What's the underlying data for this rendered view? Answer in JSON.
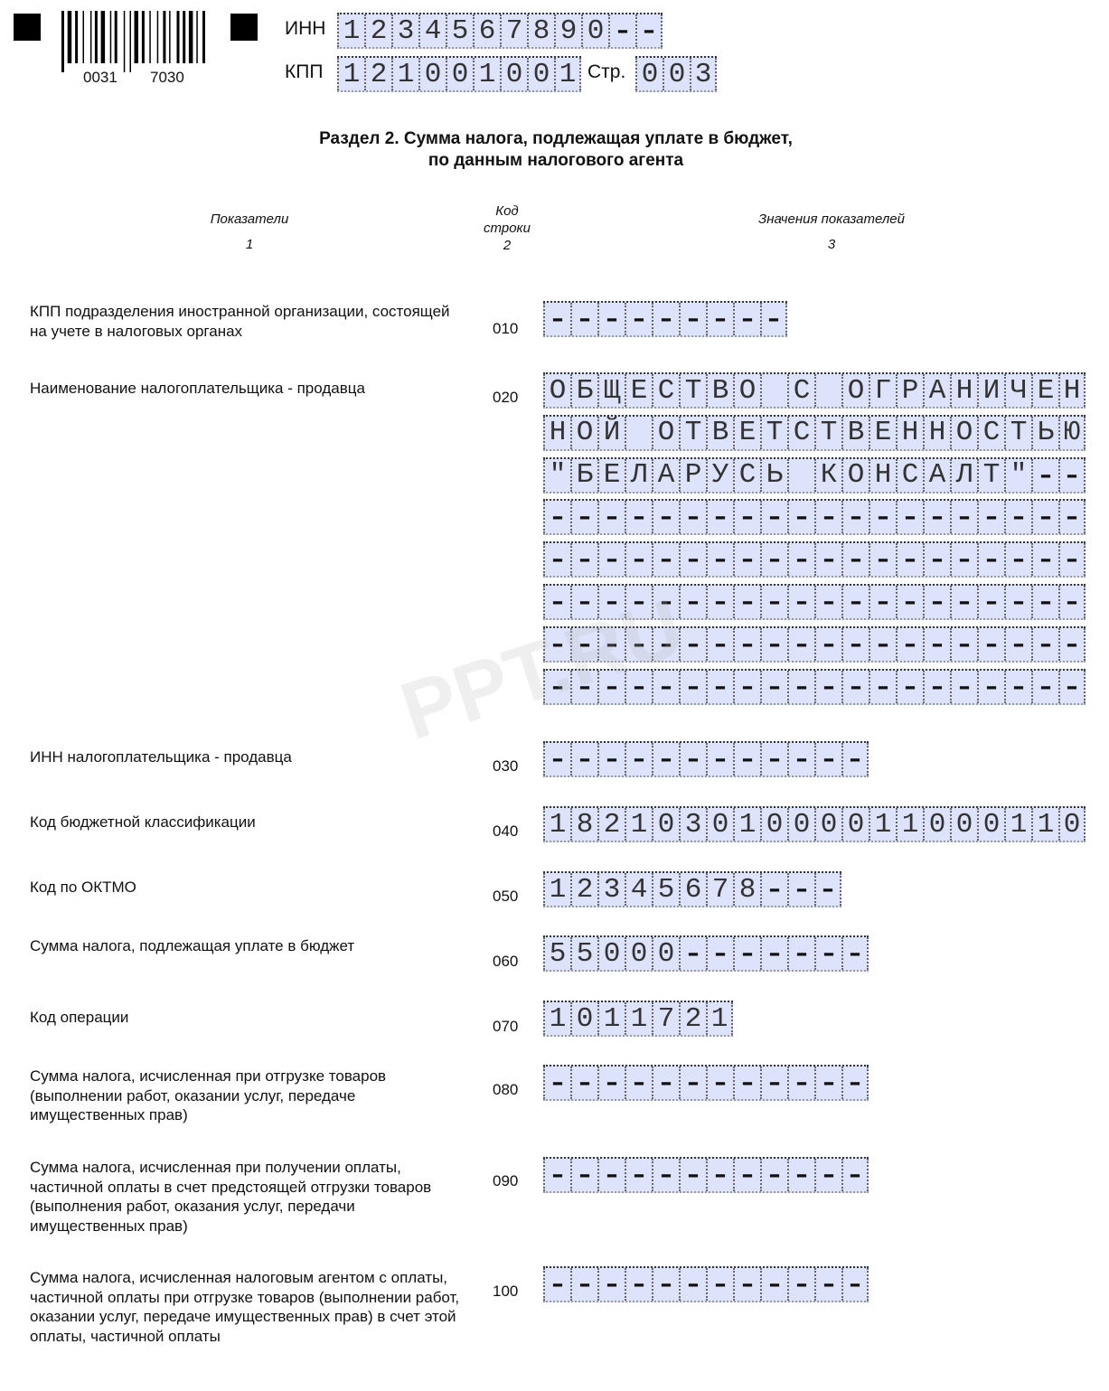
{
  "header": {
    "barcode_number_left": "0031",
    "barcode_number_right": "7030",
    "inn_label": "ИНН",
    "inn_value": "1234567890--",
    "kpp_label": "КПП",
    "kpp_value": "121001001",
    "page_label": "Стр.",
    "page_value": "003"
  },
  "title_line1": "Раздел 2. Сумма налога, подлежащая уплате в бюджет,",
  "title_line2": "по данным налогового агента",
  "columns": {
    "col1": "Показатели",
    "col1_num": "1",
    "col2_line1": "Код",
    "col2_line2": "строки",
    "col2_num": "2",
    "col3": "Значения показателей",
    "col3_num": "3"
  },
  "rows": [
    {
      "label": "КПП подразделения иностранной организации, состоящей на учете в налоговых органах",
      "code": "010",
      "values": [
        "---------"
      ]
    },
    {
      "label": "Наименование налогоплательщика - продавца",
      "code": "020",
      "values": [
        "ОБЩЕСТВО С ОГРАНИЧЕН",
        "НОЙ ОТВЕТСТВЕННОСТЬЮ",
        "\"БЕЛАРУСЬ КОНСАЛТ\"--",
        "--------------------",
        "--------------------",
        "--------------------",
        "--------------------",
        "--------------------"
      ]
    },
    {
      "label": "ИНН налогоплательщика - продавца",
      "code": "030",
      "values": [
        "------------"
      ]
    },
    {
      "label": "Код бюджетной классификации",
      "code": "040",
      "values": [
        "18210301000011000110"
      ]
    },
    {
      "label": "Код по ОКТМО",
      "code": "050",
      "values": [
        "12345678---"
      ]
    },
    {
      "label": "Сумма налога, подлежащая уплате в бюджет",
      "code": "060",
      "values": [
        "55000-------"
      ]
    },
    {
      "label": "Код операции",
      "code": "070",
      "values": [
        "1011721"
      ]
    },
    {
      "label": "Сумма налога, исчисленная при отгрузке товаров (выполнении работ, оказании услуг, передаче имущественных прав)",
      "code": "080",
      "values": [
        "------------"
      ]
    },
    {
      "label": "Сумма налога, исчисленная при получении оплаты, частичной оплаты в счет предстоящей отгрузки товаров (выполнения работ, оказания услуг, передачи имущественных прав)",
      "code": "090",
      "values": [
        "------------"
      ]
    },
    {
      "label": "Сумма налога, исчисленная налоговым агентом с оплаты, частичной оплаты при отгрузке товаров (выполнении работ, оказании услуг, передаче имущественных прав) в счет этой оплаты, частичной оплаты",
      "code": "100",
      "values": [
        "------------"
      ]
    }
  ],
  "watermark": "PPT.RU",
  "colors": {
    "field_fill": "#dde3fb"
  }
}
